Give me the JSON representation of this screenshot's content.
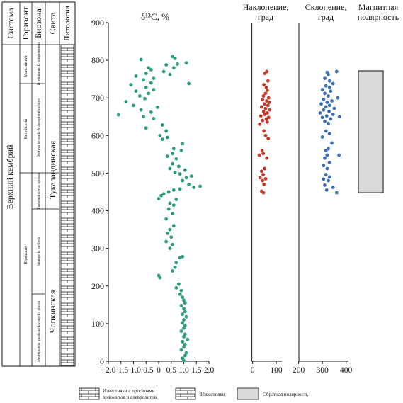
{
  "stratigraphy": {
    "headers": {
      "system": "Система",
      "horizon": "Горизонт",
      "biozone": "Биозона",
      "formation": "Свита",
      "lithology": "Литология"
    },
    "system_name": "Верхний кембрий",
    "horizons": [
      "Мансийский",
      "Кетыйский",
      "Юрахский"
    ],
    "biozones": [
      "D. ebulatus-D. ahlgrenensis",
      "Ketyya ketasula-Maosopletuhos loye",
      "Tuskenaloperus spissus",
      "Irvingella melleca",
      "Neoleptaena quadrata-Irvingella glossa"
    ],
    "formations": [
      "Тукаландинская",
      "Чопкинская"
    ]
  },
  "panels": {
    "d13c_title": "δ¹³C, %",
    "inclination_title_line1": "Наклонение,",
    "inclination_title_line2": "град",
    "declination_title_line1": "Склонение,",
    "declination_title_line2": "град",
    "polarity_title_line1": "Магнитная",
    "polarity_title_line2": "полярность"
  },
  "legend": {
    "limestone_dolomite_line1": "Известняки с прослоями",
    "limestone_dolomite_line2": "доломитов и алевролитов",
    "limestone": "Известняки",
    "reverse_polarity": "Обратная полярность"
  },
  "colors": {
    "d13c": "#2a9d7a",
    "inclination": "#c0392b",
    "declination": "#3b6fb8",
    "reverse_polarity_fill": "#d9d9d9"
  },
  "chart_data": [
    {
      "type": "scatter",
      "name": "d13C",
      "title": "δ¹³C, %",
      "y_axis": {
        "ticks": [
          0,
          100,
          200,
          300,
          400,
          500,
          600,
          700,
          800,
          900
        ],
        "range": [
          0,
          900
        ]
      },
      "x_axis": {
        "ticks": [
          -2.0,
          -1.5,
          -1.0,
          -0.5,
          0,
          0.5,
          1.0,
          1.5,
          2.0
        ],
        "tick_labels": [
          "−2.0",
          "−1.5",
          "−1.0",
          "−0.5",
          "0",
          "0.5",
          "1.0",
          "1.5",
          "2.0"
        ],
        "range": [
          -2.0,
          2.0
        ]
      },
      "points": [
        [
          1.0,
          2
        ],
        [
          0.95,
          8
        ],
        [
          1.05,
          15
        ],
        [
          1.1,
          22
        ],
        [
          0.9,
          30
        ],
        [
          1.0,
          38
        ],
        [
          1.05,
          45
        ],
        [
          0.95,
          52
        ],
        [
          1.15,
          58
        ],
        [
          1.0,
          65
        ],
        [
          1.05,
          72
        ],
        [
          0.9,
          80
        ],
        [
          1.0,
          88
        ],
        [
          1.05,
          95
        ],
        [
          0.95,
          102
        ],
        [
          1.0,
          110
        ],
        [
          1.1,
          118
        ],
        [
          0.95,
          125
        ],
        [
          1.05,
          132
        ],
        [
          1.0,
          140
        ],
        [
          0.9,
          148
        ],
        [
          1.05,
          155
        ],
        [
          1.0,
          162
        ],
        [
          0.95,
          170
        ],
        [
          0.85,
          178
        ],
        [
          0.9,
          188
        ],
        [
          0.7,
          195
        ],
        [
          0.8,
          205
        ],
        [
          0.05,
          222
        ],
        [
          0.0,
          228
        ],
        [
          0.55,
          240
        ],
        [
          0.65,
          250
        ],
        [
          0.7,
          262
        ],
        [
          0.85,
          275
        ],
        [
          0.95,
          278
        ],
        [
          0.45,
          300
        ],
        [
          0.55,
          310
        ],
        [
          0.3,
          318
        ],
        [
          0.5,
          330
        ],
        [
          0.35,
          340
        ],
        [
          0.45,
          350
        ],
        [
          0.6,
          360
        ],
        [
          0.3,
          378
        ],
        [
          0.55,
          392
        ],
        [
          0.4,
          405
        ],
        [
          0.6,
          415
        ],
        [
          0.45,
          420
        ],
        [
          0.7,
          430
        ],
        [
          0.0,
          432
        ],
        [
          0.1,
          440
        ],
        [
          0.2,
          445
        ],
        [
          0.4,
          450
        ],
        [
          0.6,
          455
        ],
        [
          0.85,
          458
        ],
        [
          1.4,
          462
        ],
        [
          1.65,
          465
        ],
        [
          1.2,
          470
        ],
        [
          0.95,
          480
        ],
        [
          1.1,
          488
        ],
        [
          1.3,
          492
        ],
        [
          0.85,
          498
        ],
        [
          0.65,
          502
        ],
        [
          1.05,
          508
        ],
        [
          0.45,
          512
        ],
        [
          0.8,
          518
        ],
        [
          0.55,
          525
        ],
        [
          0.7,
          538
        ],
        [
          0.35,
          545
        ],
        [
          0.55,
          552
        ],
        [
          0.9,
          560
        ],
        [
          0.6,
          565
        ],
        [
          0.95,
          578
        ],
        [
          0.15,
          590
        ],
        [
          0.35,
          595
        ],
        [
          0.05,
          600
        ],
        [
          0.3,
          612
        ],
        [
          -0.5,
          620
        ],
        [
          0.15,
          628
        ],
        [
          -0.2,
          645
        ],
        [
          -0.6,
          650
        ],
        [
          -1.6,
          655
        ],
        [
          -0.3,
          662
        ],
        [
          -0.7,
          668
        ],
        [
          -0.05,
          675
        ],
        [
          -1.0,
          680
        ],
        [
          -1.3,
          690
        ],
        [
          -0.55,
          698
        ],
        [
          -0.75,
          705
        ],
        [
          -0.4,
          712
        ],
        [
          -0.9,
          718
        ],
        [
          -0.2,
          722
        ],
        [
          -0.5,
          728
        ],
        [
          -1.1,
          735
        ],
        [
          -0.3,
          740
        ],
        [
          1.2,
          738
        ],
        [
          -0.6,
          748
        ],
        [
          -0.2,
          752
        ],
        [
          -0.9,
          758
        ],
        [
          -0.5,
          765
        ],
        [
          0.45,
          762
        ],
        [
          0.2,
          770
        ],
        [
          -0.3,
          775
        ],
        [
          -0.4,
          780
        ],
        [
          0.6,
          780
        ],
        [
          0.3,
          788
        ],
        [
          0.75,
          790
        ],
        [
          1.1,
          793
        ],
        [
          -0.7,
          802
        ],
        [
          0.65,
          805
        ],
        [
          0.55,
          810
        ]
      ]
    },
    {
      "type": "scatter",
      "name": "inclination",
      "title": "Наклонение, град",
      "y_axis": {
        "range": [
          0,
          900
        ]
      },
      "x_axis": {
        "ticks": [
          0,
          100
        ],
        "tick_labels": [
          "0",
          "100"
        ],
        "range": [
          -5,
          115
        ]
      },
      "points": [
        [
          60,
          770
        ],
        [
          52,
          765
        ],
        [
          65,
          745
        ],
        [
          48,
          735
        ],
        [
          58,
          728
        ],
        [
          62,
          720
        ],
        [
          55,
          712
        ],
        [
          46,
          705
        ],
        [
          68,
          700
        ],
        [
          42,
          695
        ],
        [
          60,
          692
        ],
        [
          70,
          688
        ],
        [
          50,
          684
        ],
        [
          65,
          680
        ],
        [
          38,
          676
        ],
        [
          55,
          672
        ],
        [
          72,
          668
        ],
        [
          47,
          664
        ],
        [
          62,
          660
        ],
        [
          52,
          656
        ],
        [
          35,
          652
        ],
        [
          68,
          648
        ],
        [
          58,
          644
        ],
        [
          42,
          640
        ],
        [
          62,
          636
        ],
        [
          30,
          630
        ],
        [
          48,
          612
        ],
        [
          55,
          600
        ],
        [
          66,
          592
        ],
        [
          40,
          560
        ],
        [
          45,
          552
        ],
        [
          28,
          548
        ],
        [
          60,
          540
        ],
        [
          50,
          512
        ],
        [
          38,
          505
        ],
        [
          45,
          496
        ],
        [
          32,
          488
        ],
        [
          55,
          485
        ],
        [
          42,
          480
        ],
        [
          48,
          470
        ],
        [
          38,
          452
        ],
        [
          46,
          448
        ]
      ]
    },
    {
      "type": "scatter",
      "name": "declination",
      "title": "Склонение, град",
      "y_axis": {
        "range": [
          0,
          900
        ]
      },
      "x_axis": {
        "ticks": [
          200,
          300,
          400
        ],
        "tick_labels": [
          "200",
          "300",
          "400"
        ],
        "range": [
          195,
          410
        ]
      },
      "points": [
        [
          320,
          768
        ],
        [
          360,
          770
        ],
        [
          325,
          762
        ],
        [
          310,
          752
        ],
        [
          330,
          745
        ],
        [
          345,
          738
        ],
        [
          315,
          732
        ],
        [
          330,
          728
        ],
        [
          300,
          722
        ],
        [
          335,
          718
        ],
        [
          310,
          712
        ],
        [
          325,
          705
        ],
        [
          365,
          700
        ],
        [
          305,
          696
        ],
        [
          340,
          692
        ],
        [
          320,
          688
        ],
        [
          295,
          684
        ],
        [
          330,
          680
        ],
        [
          315,
          676
        ],
        [
          350,
          672
        ],
        [
          305,
          668
        ],
        [
          328,
          664
        ],
        [
          290,
          660
        ],
        [
          345,
          656
        ],
        [
          318,
          652
        ],
        [
          372,
          650
        ],
        [
          300,
          648
        ],
        [
          335,
          644
        ],
        [
          310,
          638
        ],
        [
          325,
          632
        ],
        [
          315,
          612
        ],
        [
          330,
          605
        ],
        [
          300,
          596
        ],
        [
          340,
          580
        ],
        [
          325,
          565
        ],
        [
          315,
          560
        ],
        [
          320,
          548
        ],
        [
          370,
          548
        ],
        [
          310,
          540
        ],
        [
          330,
          528
        ],
        [
          305,
          520
        ],
        [
          320,
          512
        ],
        [
          315,
          496
        ],
        [
          330,
          490
        ],
        [
          305,
          484
        ],
        [
          325,
          480
        ],
        [
          310,
          468
        ],
        [
          345,
          462
        ],
        [
          318,
          455
        ],
        [
          360,
          448
        ]
      ]
    }
  ],
  "polarity": {
    "reverse_intervals": [
      [
        448,
        772
      ]
    ]
  }
}
